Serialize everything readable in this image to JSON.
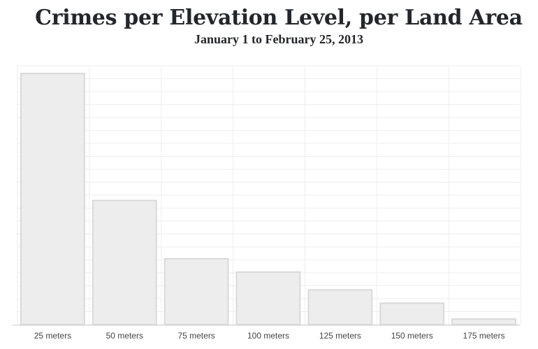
{
  "chart_data": {
    "type": "bar",
    "title": "Crimes per Elevation Level, per Land Area",
    "subtitle": "January 1 to February 25, 2013",
    "categories": [
      "25 meters",
      "50 meters",
      "75 meters",
      "100 meters",
      "125 meters",
      "150 meters",
      "175 meters"
    ],
    "values": [
      100,
      49.4,
      26.2,
      20.9,
      13.8,
      8.5,
      2.2
    ],
    "ylim": [
      0,
      100
    ],
    "xlabel": "",
    "ylabel": "",
    "grid": true,
    "bar_color": "#ededed",
    "bar_stroke": "#d9d9d9",
    "grid_color": "#eeeeee"
  }
}
